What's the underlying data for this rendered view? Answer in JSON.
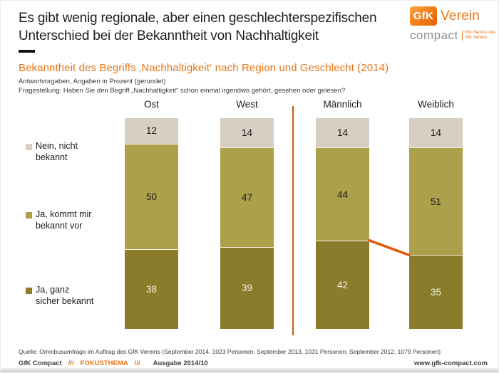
{
  "header": {
    "title": "Es gibt wenig regionale, aber einen geschlechterspezifischen Unterschied bei der Bekanntheit von Nachhaltigkeit",
    "logo": {
      "box_text": "GfK",
      "org_text": "Verein",
      "product_text": "compact",
      "tagline_line1": "Info-Service des",
      "tagline_line2": "GfK Vereins"
    }
  },
  "subtitle": "Bekanntheit des Begriffs ‚Nachhaltigkeit‘ nach Region und Geschlecht (2014)",
  "meta": {
    "line1": "Antwortvorgaben,  Angaben in Prozent (gerundet)",
    "line2": "Fragestellung: Haben Sie den Begriff „Nachhaltigkeit“ schon einmal irgendwo gehört, gesehen oder gelesen?"
  },
  "chart_data": {
    "type": "bar",
    "variant": "stacked-column-percent",
    "title": "Bekanntheit des Begriffs ‚Nachhaltigkeit‘ nach Region und Geschlecht (2014)",
    "unit": "percent",
    "total_per_column": 100,
    "categories": [
      "Ost",
      "West",
      "Männlich",
      "Weiblich"
    ],
    "series": [
      {
        "name": "Nein, nicht bekannt",
        "position": "top",
        "color": "#d7cfc1",
        "label_color": "#1c1c1c",
        "values": [
          12,
          14,
          14,
          14
        ]
      },
      {
        "name": "Ja, kommt mir bekannt vor",
        "position": "middle",
        "color": "#aca04b",
        "label_color": "#1c1c1c",
        "values": [
          50,
          47,
          44,
          51
        ]
      },
      {
        "name": "Ja, ganz sicher bekannt",
        "position": "bottom",
        "color": "#8a7c2b",
        "label_color": "#f7f3e2",
        "values": [
          38,
          39,
          42,
          35
        ]
      }
    ],
    "legend_position": "left",
    "legend_display": [
      {
        "lines": [
          "Nein, nicht",
          "bekannt"
        ]
      },
      {
        "lines": [
          "Ja, kommt mir",
          "bekannt vor"
        ]
      },
      {
        "lines": [
          "Ja, ganz",
          "sicher bekannt"
        ]
      }
    ],
    "group_divider_between": [
      "West",
      "Männlich"
    ],
    "connector": {
      "from_category": "Männlich",
      "to_category": "Weiblich",
      "at_boundary_below_series": "Ja, kommt mir bekannt vor",
      "color": "#e2580d"
    }
  },
  "source": "Quelle: Omnibusumfrage im Auftrag des GfK Vereins (September 2014, 1023 Personen; September 2013, 1031 Personen; September 2012, 1079 Personen)",
  "footer": {
    "brand": "GfK Compact",
    "sep1": "///",
    "topic": "FOKUSTHEMA",
    "sep2": "///",
    "issue": "Ausgabe 2014/10",
    "website": "www.gfk-compact.com"
  },
  "colors": {
    "accent_orange": "#e87517",
    "divider_orange": "#c55a11",
    "connector_orange": "#e2580d",
    "segment_top": "#d7cfc1",
    "segment_middle": "#aca04b",
    "segment_bottom": "#8a7c2b"
  }
}
